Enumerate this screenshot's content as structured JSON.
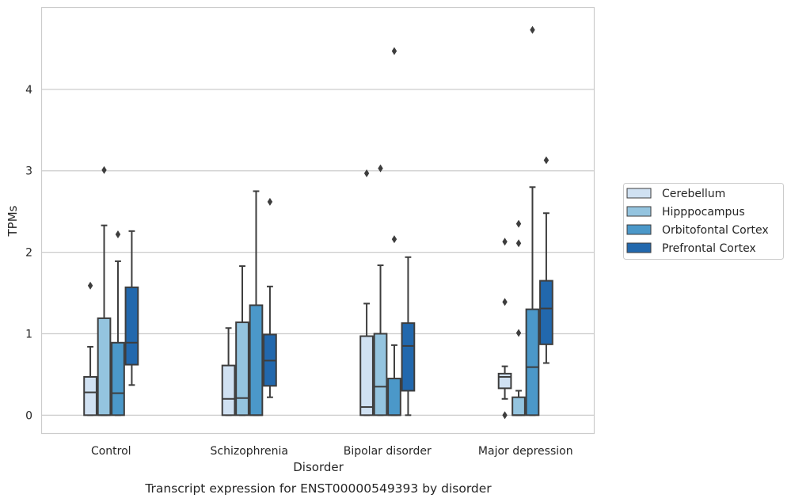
{
  "chart_data": {
    "type": "box",
    "title": "",
    "caption": "Transcript expression for ENST00000549393 by disorder",
    "xlabel": "Disorder",
    "ylabel": "TPMs",
    "ylim": [
      -0.23,
      5.0
    ],
    "yticks": [
      0,
      1,
      2,
      3,
      4
    ],
    "grid": "horizontal",
    "legend_position": "right",
    "categories": [
      "Control",
      "Schizophrenia",
      "Bipolar disorder",
      "Major depression"
    ],
    "series": [
      {
        "name": "Cerebellum",
        "color": "#d0e1f2",
        "boxes": [
          {
            "whislo": 0.0,
            "q1": 0.0,
            "median": 0.28,
            "q3": 0.47,
            "whishi": 0.84,
            "fliers": [
              1.59
            ]
          },
          {
            "whislo": 0.0,
            "q1": 0.0,
            "median": 0.2,
            "q3": 0.61,
            "whishi": 1.07,
            "fliers": []
          },
          {
            "whislo": 0.0,
            "q1": 0.0,
            "median": 0.1,
            "q3": 0.97,
            "whishi": 1.37,
            "fliers": [
              2.97
            ]
          },
          {
            "whislo": 0.2,
            "q1": 0.33,
            "median": 0.47,
            "q3": 0.51,
            "whishi": 0.6,
            "fliers": [
              0.0,
              1.39,
              2.13
            ]
          }
        ]
      },
      {
        "name": "Hipppocampus",
        "color": "#94c4df",
        "boxes": [
          {
            "whislo": 0.0,
            "q1": 0.0,
            "median": 0.0,
            "q3": 1.19,
            "whishi": 2.33,
            "fliers": [
              3.01
            ]
          },
          {
            "whislo": 0.0,
            "q1": 0.0,
            "median": 0.21,
            "q3": 1.14,
            "whishi": 1.83,
            "fliers": []
          },
          {
            "whislo": 0.0,
            "q1": 0.0,
            "median": 0.35,
            "q3": 1.0,
            "whishi": 1.84,
            "fliers": [
              3.03
            ]
          },
          {
            "whislo": 0.0,
            "q1": 0.0,
            "median": 0.0,
            "q3": 0.22,
            "whishi": 0.3,
            "fliers": [
              1.01,
              2.11,
              2.35
            ]
          }
        ]
      },
      {
        "name": "Orbitofontal Cortex",
        "color": "#4b98c9",
        "boxes": [
          {
            "whislo": 0.0,
            "q1": 0.0,
            "median": 0.27,
            "q3": 0.89,
            "whishi": 1.89,
            "fliers": [
              2.22
            ]
          },
          {
            "whislo": 0.0,
            "q1": 0.0,
            "median": 0.0,
            "q3": 1.35,
            "whishi": 2.75,
            "fliers": []
          },
          {
            "whislo": 0.0,
            "q1": 0.0,
            "median": 0.0,
            "q3": 0.45,
            "whishi": 0.86,
            "fliers": [
              2.16,
              4.47
            ]
          },
          {
            "whislo": 0.0,
            "q1": 0.0,
            "median": 0.59,
            "q3": 1.3,
            "whishi": 2.8,
            "fliers": [
              4.73
            ]
          }
        ]
      },
      {
        "name": "Prefrontal Cortex",
        "color": "#2268ad",
        "boxes": [
          {
            "whislo": 0.37,
            "q1": 0.62,
            "median": 0.89,
            "q3": 1.57,
            "whishi": 2.26,
            "fliers": []
          },
          {
            "whislo": 0.22,
            "q1": 0.36,
            "median": 0.67,
            "q3": 0.99,
            "whishi": 1.58,
            "fliers": [
              2.62
            ]
          },
          {
            "whislo": 0.0,
            "q1": 0.3,
            "median": 0.85,
            "q3": 1.13,
            "whishi": 1.94,
            "fliers": []
          },
          {
            "whislo": 0.64,
            "q1": 0.87,
            "median": 1.31,
            "q3": 1.65,
            "whishi": 2.48,
            "fliers": [
              3.13
            ]
          }
        ]
      }
    ]
  }
}
